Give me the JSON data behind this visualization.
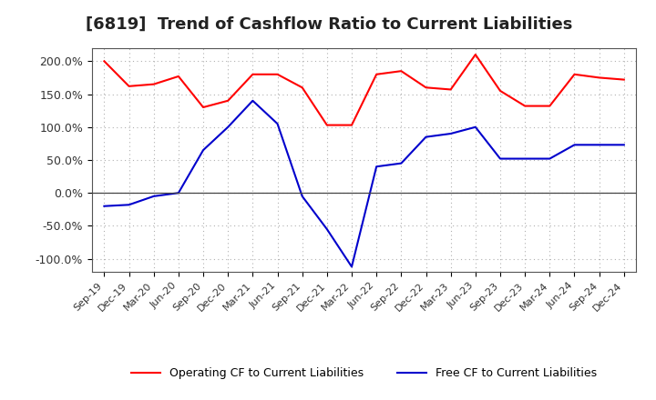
{
  "title": "[6819]  Trend of Cashflow Ratio to Current Liabilities",
  "x_labels": [
    "Sep-19",
    "Dec-19",
    "Mar-20",
    "Jun-20",
    "Sep-20",
    "Dec-20",
    "Mar-21",
    "Jun-21",
    "Sep-21",
    "Dec-21",
    "Mar-22",
    "Jun-22",
    "Sep-22",
    "Dec-22",
    "Mar-23",
    "Jun-23",
    "Sep-23",
    "Dec-23",
    "Mar-24",
    "Jun-24",
    "Sep-24",
    "Dec-24"
  ],
  "operating_cf": [
    200,
    162,
    165,
    177,
    130,
    140,
    180,
    180,
    160,
    103,
    103,
    180,
    185,
    160,
    157,
    210,
    155,
    132,
    132,
    180,
    175,
    172
  ],
  "free_cf": [
    -20,
    -18,
    -5,
    0,
    65,
    100,
    140,
    105,
    -5,
    -55,
    -112,
    40,
    45,
    85,
    90,
    100,
    52,
    52,
    52,
    73,
    73,
    73
  ],
  "operating_color": "#ff0000",
  "free_color": "#0000cc",
  "ylim": [
    -120,
    220
  ],
  "yticks": [
    -100,
    -50,
    0,
    50,
    100,
    150,
    200
  ],
  "ytick_labels": [
    "-100.0%",
    "-50.0%",
    "0.0%",
    "50.0%",
    "100.0%",
    "150.0%",
    "200.0%"
  ],
  "background_color": "#ffffff",
  "grid_color": "#b0b0b0",
  "legend_operating": "Operating CF to Current Liabilities",
  "legend_free": "Free CF to Current Liabilities",
  "title_fontsize": 13,
  "tick_fontsize": 9,
  "legend_fontsize": 9
}
